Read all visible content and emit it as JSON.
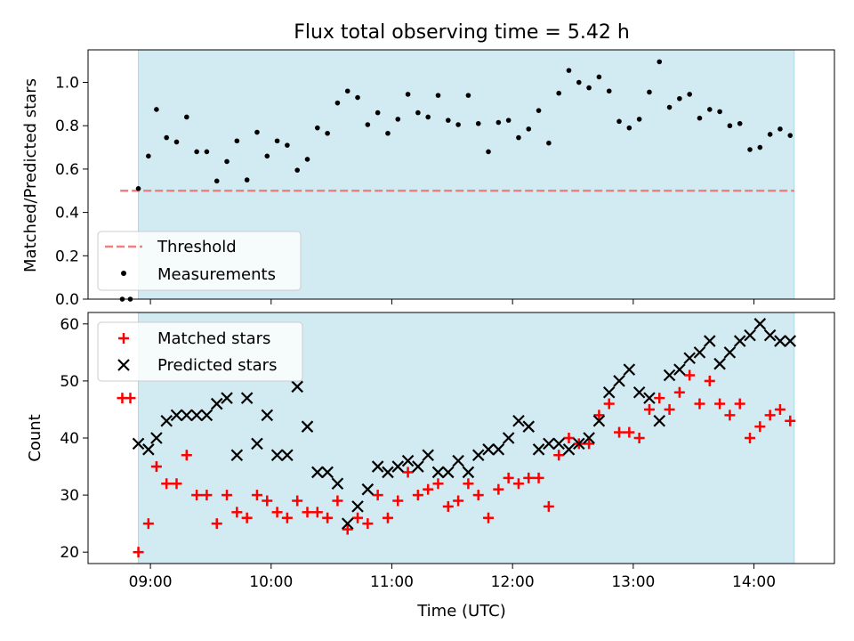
{
  "chart_data": [
    {
      "type": "scatter",
      "title": "Flux total observing time = 5.42 h",
      "xlabel": "",
      "ylabel": "Matched/Predicted stars",
      "xlim": [
        "08:29",
        "14:40"
      ],
      "ylim": [
        0,
        1.15
      ],
      "yticks": [
        0.0,
        0.2,
        0.4,
        0.6,
        0.8,
        1.0
      ],
      "ytick_labels": [
        "0.0",
        "0.2",
        "0.4",
        "0.6",
        "0.8",
        "1.0"
      ],
      "xticks": [
        "09:00",
        "10:00",
        "11:00",
        "12:00",
        "13:00",
        "14:00"
      ],
      "xtick_labels_visible": false,
      "shaded_interval": [
        "08:54",
        "14:20"
      ],
      "shaded_color": "#add8e6",
      "threshold": {
        "label": "Threshold",
        "value": 0.5,
        "x_range": [
          "08:45",
          "14:20"
        ],
        "color": "#f08080",
        "style": "dashed"
      },
      "legend": {
        "location": "lower-left"
      },
      "series": [
        {
          "name": "Measurements",
          "marker": "dot",
          "color": "#000000",
          "x": [
            "08:46",
            "08:50",
            "08:54",
            "08:59",
            "09:03",
            "09:08",
            "09:13",
            "09:18",
            "09:23",
            "09:28",
            "09:33",
            "09:38",
            "09:43",
            "09:48",
            "09:53",
            "09:58",
            "10:03",
            "10:08",
            "10:13",
            "10:18",
            "10:23",
            "10:28",
            "10:33",
            "10:38",
            "10:43",
            "10:48",
            "10:53",
            "10:58",
            "11:03",
            "11:08",
            "11:13",
            "11:18",
            "11:23",
            "11:28",
            "11:33",
            "11:38",
            "11:43",
            "11:48",
            "11:53",
            "11:58",
            "12:03",
            "12:08",
            "12:13",
            "12:18",
            "12:23",
            "12:28",
            "12:33",
            "12:38",
            "12:43",
            "12:48",
            "12:53",
            "12:58",
            "13:03",
            "13:08",
            "13:13",
            "13:18",
            "13:23",
            "13:28",
            "13:33",
            "13:38",
            "13:43",
            "13:48",
            "13:53",
            "13:58",
            "14:03",
            "14:08",
            "14:13",
            "14:18"
          ],
          "y": [
            0.0,
            0.0,
            0.51,
            0.66,
            0.875,
            0.745,
            0.725,
            0.84,
            0.68,
            0.68,
            0.545,
            0.635,
            0.73,
            0.55,
            0.77,
            0.66,
            0.73,
            0.71,
            0.595,
            0.645,
            0.79,
            0.765,
            0.905,
            0.96,
            0.93,
            0.805,
            0.86,
            0.765,
            0.83,
            0.945,
            0.86,
            0.84,
            0.94,
            0.825,
            0.805,
            0.94,
            0.81,
            0.68,
            0.815,
            0.825,
            0.745,
            0.785,
            0.87,
            0.72,
            0.95,
            1.055,
            1.0,
            0.975,
            1.025,
            0.96,
            0.82,
            0.79,
            0.83,
            0.955,
            1.095,
            0.885,
            0.925,
            0.945,
            0.835,
            0.875,
            0.865,
            0.8,
            0.81,
            0.69,
            0.7,
            0.76,
            0.785,
            0.755
          ]
        }
      ]
    },
    {
      "type": "scatter",
      "title": "",
      "xlabel": "Time (UTC)",
      "ylabel": "Count",
      "xlim": [
        "08:29",
        "14:40"
      ],
      "ylim": [
        18,
        62
      ],
      "yticks": [
        20,
        30,
        40,
        50,
        60
      ],
      "ytick_labels": [
        "20",
        "30",
        "40",
        "50",
        "60"
      ],
      "xticks": [
        "09:00",
        "10:00",
        "11:00",
        "12:00",
        "13:00",
        "14:00"
      ],
      "xtick_labels": [
        "09:00",
        "10:00",
        "11:00",
        "12:00",
        "13:00",
        "14:00"
      ],
      "shaded_interval": [
        "08:54",
        "14:20"
      ],
      "shaded_color": "#add8e6",
      "legend": {
        "location": "top-left"
      },
      "series": [
        {
          "name": "Matched stars",
          "marker": "plus",
          "color": "#ff0000",
          "x": [
            "08:46",
            "08:50",
            "08:54",
            "08:59",
            "09:03",
            "09:08",
            "09:13",
            "09:18",
            "09:23",
            "09:28",
            "09:33",
            "09:38",
            "09:43",
            "09:48",
            "09:53",
            "09:58",
            "10:03",
            "10:08",
            "10:13",
            "10:18",
            "10:23",
            "10:28",
            "10:33",
            "10:38",
            "10:43",
            "10:48",
            "10:53",
            "10:58",
            "11:03",
            "11:08",
            "11:13",
            "11:18",
            "11:23",
            "11:28",
            "11:33",
            "11:38",
            "11:43",
            "11:48",
            "11:53",
            "11:58",
            "12:03",
            "12:08",
            "12:13",
            "12:18",
            "12:23",
            "12:28",
            "12:33",
            "12:38",
            "12:43",
            "12:48",
            "12:53",
            "12:58",
            "13:03",
            "13:08",
            "13:13",
            "13:18",
            "13:23",
            "13:28",
            "13:33",
            "13:38",
            "13:43",
            "13:48",
            "13:53",
            "13:58",
            "14:03",
            "14:08",
            "14:13",
            "14:18"
          ],
          "y": [
            47,
            47,
            20,
            25,
            35,
            32,
            32,
            37,
            30,
            30,
            25,
            30,
            27,
            26,
            30,
            29,
            27,
            26,
            29,
            27,
            27,
            26,
            29,
            24,
            26,
            25,
            30,
            26,
            29,
            34,
            30,
            31,
            32,
            28,
            29,
            32,
            30,
            26,
            31,
            33,
            32,
            33,
            33,
            28,
            37,
            40,
            39,
            39,
            44,
            46,
            41,
            41,
            40,
            45,
            47,
            45,
            48,
            51,
            46,
            50,
            46,
            44,
            46,
            40,
            42,
            44,
            45,
            43
          ]
        },
        {
          "name": "Predicted stars",
          "marker": "x",
          "color": "#000000",
          "x": [
            "08:54",
            "08:59",
            "09:03",
            "09:08",
            "09:13",
            "09:18",
            "09:23",
            "09:28",
            "09:33",
            "09:38",
            "09:43",
            "09:48",
            "09:53",
            "09:58",
            "10:03",
            "10:08",
            "10:13",
            "10:18",
            "10:23",
            "10:28",
            "10:33",
            "10:38",
            "10:43",
            "10:48",
            "10:53",
            "10:58",
            "11:03",
            "11:08",
            "11:13",
            "11:18",
            "11:23",
            "11:28",
            "11:33",
            "11:38",
            "11:43",
            "11:48",
            "11:53",
            "11:58",
            "12:03",
            "12:08",
            "12:13",
            "12:18",
            "12:23",
            "12:28",
            "12:33",
            "12:38",
            "12:43",
            "12:48",
            "12:53",
            "12:58",
            "13:03",
            "13:08",
            "13:13",
            "13:18",
            "13:23",
            "13:28",
            "13:33",
            "13:38",
            "13:43",
            "13:48",
            "13:53",
            "13:58",
            "14:03",
            "14:08",
            "14:13",
            "14:18"
          ],
          "y": [
            39,
            38,
            40,
            43,
            44,
            44,
            44,
            44,
            46,
            47,
            37,
            47,
            39,
            44,
            37,
            37,
            49,
            42,
            34,
            34,
            32,
            25,
            28,
            31,
            35,
            34,
            35,
            36,
            35,
            37,
            34,
            34,
            36,
            34,
            37,
            38,
            38,
            40,
            43,
            42,
            38,
            39,
            39,
            38,
            39,
            40,
            43,
            48,
            50,
            52,
            48,
            47,
            43,
            51,
            52,
            54,
            55,
            57,
            53,
            55,
            57,
            58,
            60,
            58,
            57,
            57
          ]
        }
      ]
    }
  ]
}
